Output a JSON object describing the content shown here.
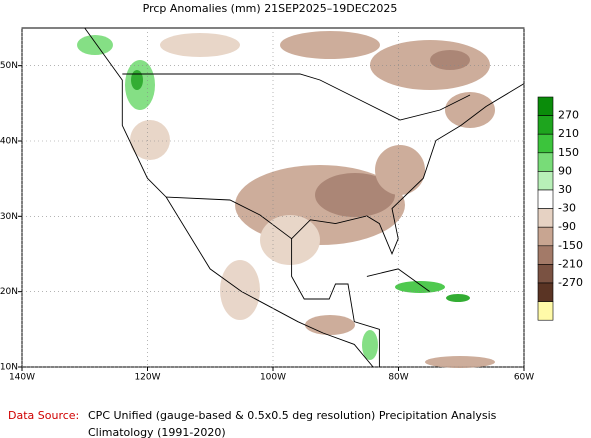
{
  "title": "Prcp Anomalies (mm) 21SEP2025–19DEC2025",
  "map": {
    "xlim": [
      -140,
      -60
    ],
    "ylim": [
      10,
      55
    ],
    "xticks": [
      {
        "value": -140,
        "label": "140W"
      },
      {
        "value": -120,
        "label": "120W"
      },
      {
        "value": -100,
        "label": "100W"
      },
      {
        "value": -80,
        "label": "80W"
      },
      {
        "value": -60,
        "label": "60W"
      }
    ],
    "yticks": [
      {
        "value": 10,
        "label": "10N"
      },
      {
        "value": 20,
        "label": "20N"
      },
      {
        "value": 30,
        "label": "30N"
      },
      {
        "value": 40,
        "label": "40N"
      },
      {
        "value": 50,
        "label": "50N"
      }
    ]
  },
  "colorbar": {
    "levels": [
      270,
      210,
      150,
      90,
      30,
      -30,
      -90,
      -150,
      -210,
      -270
    ],
    "colors": [
      "#0a8c0a",
      "#1ea51e",
      "#3cc43c",
      "#78dc78",
      "#b8f0b8",
      "#ffffff",
      "#e6d2c3",
      "#c8a591",
      "#a37a68",
      "#7a5242",
      "#5a3424",
      "#fffaa8"
    ]
  },
  "source": {
    "label": "Data Source:",
    "text": "CPC Unified (gauge-based & 0.5x0.5 deg resolution) Precipitation Analysis",
    "line2": "Climatology (1991-2020)"
  }
}
